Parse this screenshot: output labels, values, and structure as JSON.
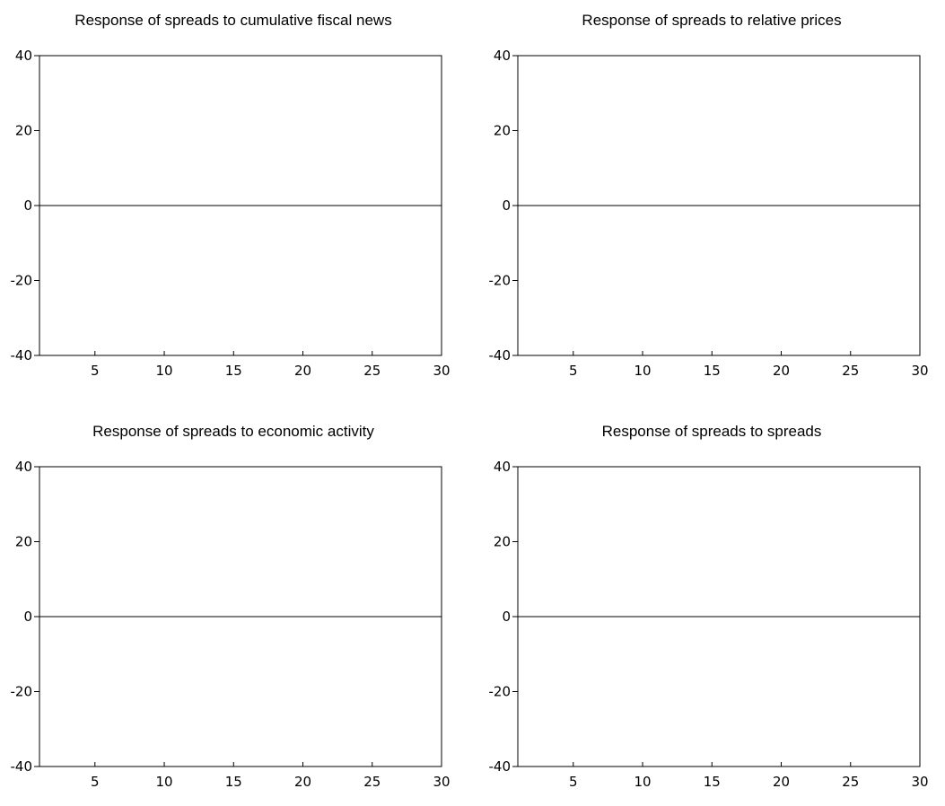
{
  "chart_data": [
    {
      "type": "line",
      "title": "Response of spreads to cumulative fiscal news",
      "xlim": [
        1,
        30
      ],
      "ylim": [
        -40,
        40
      ],
      "xticks": [
        5,
        10,
        15,
        20,
        25,
        30
      ],
      "yticks": [
        40,
        20,
        0,
        -20,
        -40
      ],
      "reference_line": 0,
      "grid": false,
      "series": []
    },
    {
      "type": "line",
      "title": "Response of spreads to relative prices",
      "xlim": [
        1,
        30
      ],
      "ylim": [
        -40,
        40
      ],
      "xticks": [
        5,
        10,
        15,
        20,
        25,
        30
      ],
      "yticks": [
        40,
        20,
        0,
        -20,
        -40
      ],
      "reference_line": 0,
      "grid": false,
      "series": []
    },
    {
      "type": "line",
      "title": "Response of spreads to economic activity",
      "xlim": [
        1,
        30
      ],
      "ylim": [
        -40,
        40
      ],
      "xticks": [
        5,
        10,
        15,
        20,
        25,
        30
      ],
      "yticks": [
        40,
        20,
        0,
        -20,
        -40
      ],
      "reference_line": 0,
      "grid": false,
      "series": []
    },
    {
      "type": "line",
      "title": "Response of spreads to spreads",
      "xlim": [
        1,
        30
      ],
      "ylim": [
        -40,
        40
      ],
      "xticks": [
        5,
        10,
        15,
        20,
        25,
        30
      ],
      "yticks": [
        40,
        20,
        0,
        -20,
        -40
      ],
      "reference_line": 0,
      "grid": false,
      "series": []
    }
  ]
}
